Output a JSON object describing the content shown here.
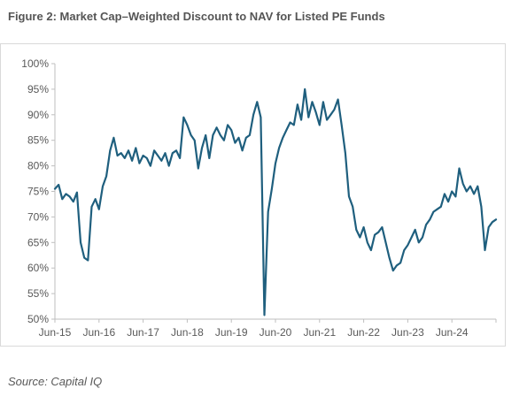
{
  "title": "Figure 2: Market Cap–Weighted Discount to NAV for Listed PE Funds",
  "source": "Source: Capital IQ",
  "colors": {
    "line": "#1f5f7e",
    "axis": "#bfbfbf",
    "text": "#595959",
    "title": "#555555"
  },
  "chart_data": {
    "type": "line",
    "title": "Figure 2: Market Cap–Weighted Discount to NAV for Listed PE Funds",
    "xlabel": "",
    "ylabel": "",
    "y_unit": "%",
    "ylim": [
      50,
      100
    ],
    "y_ticks": [
      50,
      55,
      60,
      65,
      70,
      75,
      80,
      85,
      90,
      95,
      100
    ],
    "y_tick_labels": [
      "50%",
      "55%",
      "60%",
      "65%",
      "70%",
      "75%",
      "80%",
      "85%",
      "90%",
      "95%",
      "100%"
    ],
    "xlim": [
      "2015-06",
      "2025-06"
    ],
    "x_ticks": [
      "2015-06",
      "2016-06",
      "2017-06",
      "2018-06",
      "2019-06",
      "2020-06",
      "2021-06",
      "2022-06",
      "2023-06",
      "2024-06"
    ],
    "x_tick_labels": [
      "Jun-15",
      "Jun-16",
      "Jun-17",
      "Jun-18",
      "Jun-19",
      "Jun-20",
      "Jun-21",
      "Jun-22",
      "Jun-23",
      "Jun-24"
    ],
    "grid": false,
    "legend": "none",
    "series": [
      {
        "x": [
          "2015-06",
          "2015-07",
          "2015-08",
          "2015-09",
          "2015-10",
          "2015-11",
          "2015-12",
          "2016-01",
          "2016-02",
          "2016-03",
          "2016-04",
          "2016-05",
          "2016-06",
          "2016-07",
          "2016-08",
          "2016-09",
          "2016-10",
          "2016-11",
          "2016-12",
          "2017-01",
          "2017-02",
          "2017-03",
          "2017-04",
          "2017-05",
          "2017-06",
          "2017-07",
          "2017-08",
          "2017-09",
          "2017-10",
          "2017-11",
          "2017-12",
          "2018-01",
          "2018-02",
          "2018-03",
          "2018-04",
          "2018-05",
          "2018-06",
          "2018-07",
          "2018-08",
          "2018-09",
          "2018-10",
          "2018-11",
          "2018-12",
          "2019-01",
          "2019-02",
          "2019-03",
          "2019-04",
          "2019-05",
          "2019-06",
          "2019-07",
          "2019-08",
          "2019-09",
          "2019-10",
          "2019-11",
          "2019-12",
          "2020-01",
          "2020-02",
          "2020-03",
          "2020-04",
          "2020-05",
          "2020-06",
          "2020-07",
          "2020-08",
          "2020-09",
          "2020-10",
          "2020-11",
          "2020-12",
          "2021-01",
          "2021-02",
          "2021-03",
          "2021-04",
          "2021-05",
          "2021-06",
          "2021-07",
          "2021-08",
          "2021-09",
          "2021-10",
          "2021-11",
          "2021-12",
          "2022-01",
          "2022-02",
          "2022-03",
          "2022-04",
          "2022-05",
          "2022-06",
          "2022-07",
          "2022-08",
          "2022-09",
          "2022-10",
          "2022-11",
          "2022-12",
          "2023-01",
          "2023-02",
          "2023-03",
          "2023-04",
          "2023-05",
          "2023-06",
          "2023-07",
          "2023-08",
          "2023-09",
          "2023-10",
          "2023-11",
          "2023-12",
          "2024-01",
          "2024-02",
          "2024-03",
          "2024-04",
          "2024-05",
          "2024-06",
          "2024-07",
          "2024-08",
          "2024-09",
          "2024-10",
          "2024-11",
          "2024-12",
          "2025-01",
          "2025-02",
          "2025-03",
          "2025-04",
          "2025-05",
          "2025-06"
        ],
        "values": [
          75.5,
          76.3,
          73.5,
          74.5,
          74.0,
          73.0,
          74.8,
          65.0,
          62.0,
          61.5,
          72.0,
          73.5,
          71.5,
          76.0,
          78.0,
          83.0,
          85.5,
          82.0,
          82.5,
          81.5,
          83.0,
          81.0,
          83.5,
          80.5,
          82.0,
          81.5,
          80.0,
          83.0,
          82.0,
          81.0,
          82.5,
          80.0,
          82.5,
          83.0,
          81.5,
          89.5,
          88.0,
          86.0,
          85.0,
          79.5,
          83.5,
          86.0,
          81.5,
          86.0,
          87.5,
          86.0,
          85.0,
          88.0,
          87.0,
          84.5,
          85.5,
          83.0,
          85.5,
          86.0,
          90.0,
          92.5,
          89.5,
          50.8,
          71.0,
          75.5,
          80.5,
          83.5,
          85.5,
          87.0,
          88.5,
          88.0,
          92.0,
          89.0,
          95.0,
          89.5,
          92.5,
          90.5,
          88.0,
          92.5,
          89.0,
          90.0,
          91.0,
          93.0,
          88.0,
          82.5,
          74.0,
          72.0,
          67.5,
          66.0,
          68.0,
          65.0,
          63.5,
          66.5,
          67.0,
          68.0,
          65.0,
          62.0,
          59.5,
          60.5,
          61.0,
          63.5,
          64.5,
          66.0,
          67.5,
          65.0,
          66.0,
          68.5,
          69.5,
          71.0,
          71.5,
          72.0,
          74.5,
          73.0,
          75.0,
          74.0,
          79.5,
          76.5,
          75.0,
          76.0,
          74.5,
          76.0,
          72.0,
          63.5,
          68.0,
          69.0,
          69.5
        ]
      }
    ]
  }
}
